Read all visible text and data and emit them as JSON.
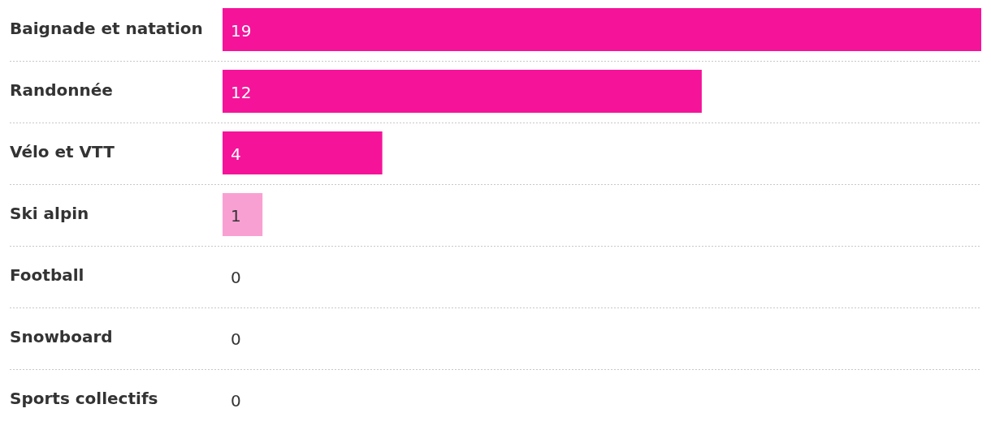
{
  "chart_data": {
    "type": "bar",
    "orientation": "horizontal",
    "categories": [
      "Baignade et natation",
      "Randonnée",
      "Vélo et VTT",
      "Ski alpin",
      "Football",
      "Snowboard",
      "Sports collectifs"
    ],
    "values": [
      19,
      12,
      4,
      1,
      0,
      0,
      0
    ],
    "colors": [
      "#f5139a",
      "#f5139a",
      "#f5139a",
      "#f9a0d3",
      "#f5139a",
      "#f5139a",
      "#f5139a"
    ],
    "data_labels": true,
    "grid": true
  }
}
